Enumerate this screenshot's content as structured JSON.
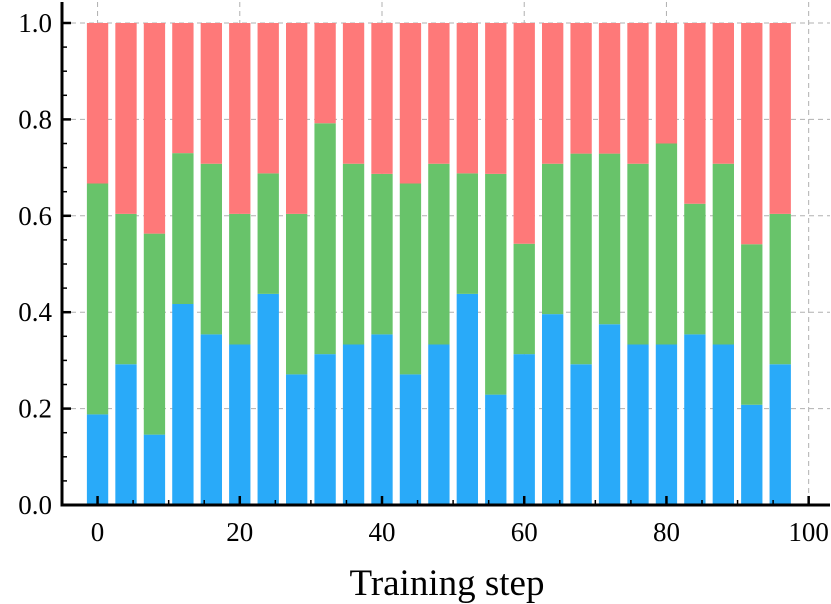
{
  "chart_data": {
    "type": "bar",
    "stacked": true,
    "normalized": true,
    "title": "",
    "xlabel": "Training step",
    "ylabel": "",
    "xlim": [
      -5,
      103
    ],
    "ylim": [
      0,
      1.0
    ],
    "xticks": [
      0,
      20,
      40,
      60,
      80,
      100
    ],
    "yticks": [
      0.0,
      0.2,
      0.4,
      0.6,
      0.8,
      1.0
    ],
    "xtick_labels": [
      "0",
      "20",
      "40",
      "60",
      "80",
      "100"
    ],
    "ytick_labels": [
      "0.0",
      "0.2",
      "0.4",
      "0.6",
      "0.8",
      "1.0"
    ],
    "grid": true,
    "bar_width": 3,
    "x": [
      0,
      4,
      8,
      12,
      16,
      20,
      24,
      28,
      32,
      36,
      40,
      44,
      48,
      52,
      56,
      60,
      64,
      68,
      72,
      76,
      80,
      84,
      88,
      92,
      96
    ],
    "series": [
      {
        "color": "#29aaf9",
        "values": [
          0.188,
          0.292,
          0.146,
          0.417,
          0.354,
          0.333,
          0.438,
          0.271,
          0.313,
          0.333,
          0.354,
          0.271,
          0.333,
          0.438,
          0.229,
          0.313,
          0.396,
          0.292,
          0.375,
          0.333,
          0.333,
          0.354,
          0.333,
          0.208,
          0.292
        ]
      },
      {
        "color": "#68c36a",
        "values": [
          0.479,
          0.312,
          0.417,
          0.313,
          0.354,
          0.271,
          0.25,
          0.333,
          0.479,
          0.375,
          0.333,
          0.396,
          0.375,
          0.25,
          0.458,
          0.229,
          0.312,
          0.437,
          0.354,
          0.375,
          0.417,
          0.271,
          0.375,
          0.333,
          0.312
        ]
      },
      {
        "color": "#fe7979",
        "values": [
          0.333,
          0.396,
          0.437,
          0.27,
          0.292,
          0.396,
          0.312,
          0.396,
          0.208,
          0.292,
          0.313,
          0.333,
          0.292,
          0.312,
          0.313,
          0.458,
          0.292,
          0.271,
          0.271,
          0.292,
          0.25,
          0.375,
          0.292,
          0.459,
          0.396
        ]
      }
    ]
  }
}
